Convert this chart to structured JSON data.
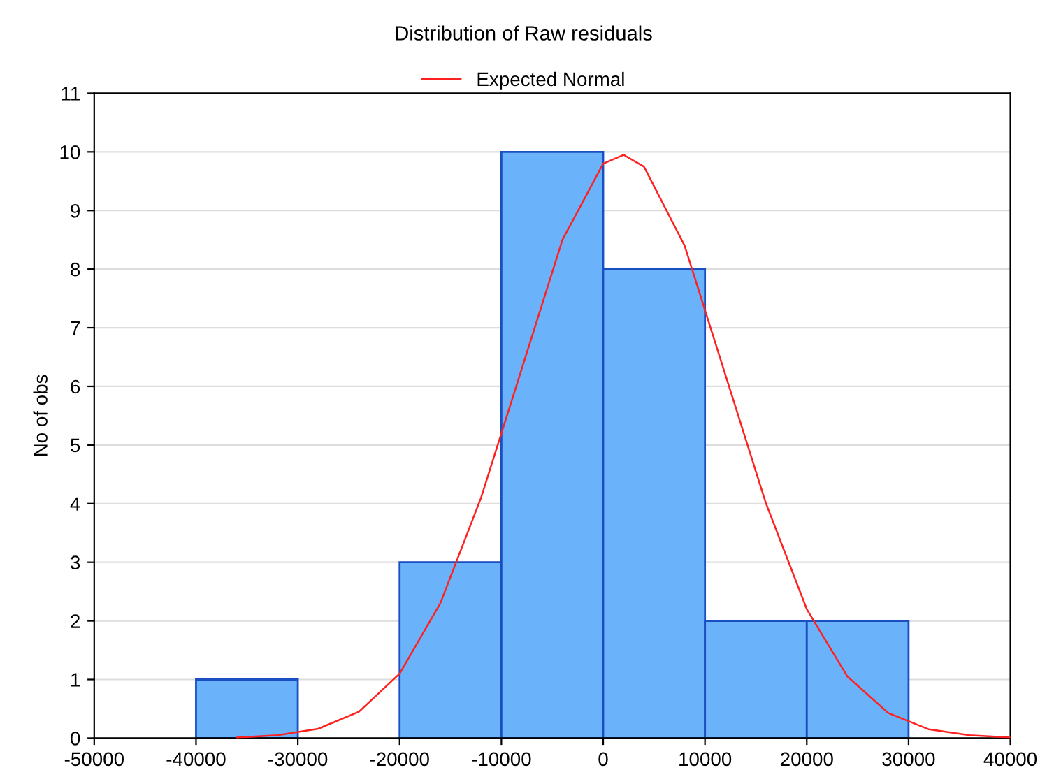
{
  "chart_data": {
    "type": "histogram",
    "title": "Distribution of Raw residuals",
    "ylabel": "No of obs",
    "bins": [
      -40000,
      -30000,
      -20000,
      -10000,
      0,
      10000,
      20000,
      30000
    ],
    "values": [
      1,
      0,
      3,
      10,
      8,
      2,
      2
    ],
    "color": "#6ab2fa",
    "series": [
      {
        "name": "Expected Normal",
        "type": "line",
        "color": "#ff2020",
        "x": [
          -36000,
          -32000,
          -28000,
          -24000,
          -20000,
          -16000,
          -12000,
          -10000,
          -8000,
          -4000,
          0,
          2000,
          4000,
          8000,
          12000,
          16000,
          20000,
          24000,
          28000,
          32000,
          36000,
          40000
        ],
        "values": [
          0.01,
          0.05,
          0.16,
          0.45,
          1.1,
          2.3,
          4.1,
          5.2,
          6.3,
          8.5,
          9.8,
          9.95,
          9.75,
          8.4,
          6.2,
          4.0,
          2.2,
          1.05,
          0.43,
          0.15,
          0.05,
          0.01
        ]
      }
    ],
    "xlim": [
      -50000,
      40000
    ],
    "xticks": [
      -50000,
      -40000,
      -30000,
      -20000,
      -10000,
      0,
      10000,
      20000,
      30000,
      40000
    ],
    "ylim": [
      0,
      11
    ],
    "yticks": [
      0,
      1,
      2,
      3,
      4,
      5,
      6,
      7,
      8,
      9,
      10,
      11
    ],
    "grid": "y",
    "legend": "top"
  }
}
